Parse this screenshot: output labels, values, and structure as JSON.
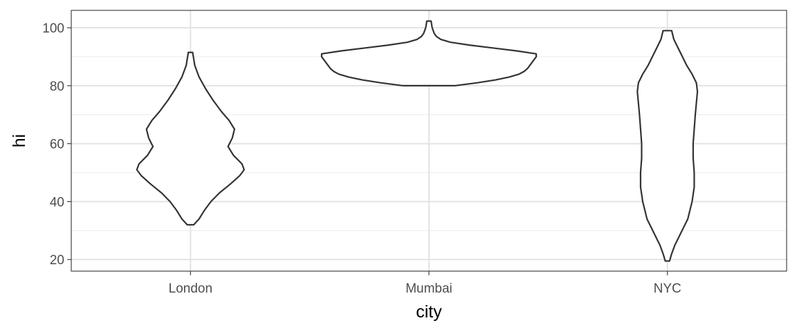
{
  "chart_data": {
    "type": "violin",
    "xlabel": "city",
    "ylabel": "hi",
    "categories": [
      "London",
      "Mumbai",
      "NYC"
    ],
    "ylim": [
      16,
      106
    ],
    "yticks": [
      20,
      40,
      60,
      80,
      100
    ],
    "grid": true,
    "theme": "bw",
    "series": [
      {
        "category": "London",
        "range": [
          32,
          91.5
        ],
        "density_profile": [
          [
            32,
            0.03
          ],
          [
            34,
            0.08
          ],
          [
            37,
            0.13
          ],
          [
            40,
            0.19
          ],
          [
            43,
            0.27
          ],
          [
            46,
            0.37
          ],
          [
            49,
            0.46
          ],
          [
            51,
            0.5
          ],
          [
            53,
            0.48
          ],
          [
            56,
            0.4
          ],
          [
            59,
            0.35
          ],
          [
            62,
            0.39
          ],
          [
            65,
            0.41
          ],
          [
            68,
            0.36
          ],
          [
            71,
            0.29
          ],
          [
            75,
            0.21
          ],
          [
            79,
            0.14
          ],
          [
            83,
            0.08
          ],
          [
            87,
            0.04
          ],
          [
            91.5,
            0.02
          ]
        ]
      },
      {
        "category": "Mumbai",
        "range": [
          80,
          102.3
        ],
        "density_profile": [
          [
            80,
            0.24
          ],
          [
            81,
            0.45
          ],
          [
            82,
            0.62
          ],
          [
            83,
            0.75
          ],
          [
            84,
            0.84
          ],
          [
            85,
            0.89
          ],
          [
            86,
            0.92
          ],
          [
            87,
            0.94
          ],
          [
            88,
            0.96
          ],
          [
            89,
            0.98
          ],
          [
            90,
            1.0
          ],
          [
            91,
            1.0
          ],
          [
            92,
            0.82
          ],
          [
            93,
            0.6
          ],
          [
            94,
            0.38
          ],
          [
            95,
            0.2
          ],
          [
            96,
            0.11
          ],
          [
            97,
            0.07
          ],
          [
            98,
            0.05
          ],
          [
            100,
            0.03
          ],
          [
            102.3,
            0.02
          ]
        ]
      },
      {
        "category": "NYC",
        "range": [
          19.5,
          99
        ],
        "density_profile": [
          [
            19.5,
            0.02
          ],
          [
            22,
            0.04
          ],
          [
            25,
            0.07
          ],
          [
            28,
            0.11
          ],
          [
            31,
            0.15
          ],
          [
            34,
            0.19
          ],
          [
            37,
            0.21
          ],
          [
            40,
            0.23
          ],
          [
            45,
            0.25
          ],
          [
            50,
            0.25
          ],
          [
            55,
            0.24
          ],
          [
            60,
            0.24
          ],
          [
            65,
            0.25
          ],
          [
            70,
            0.26
          ],
          [
            74,
            0.27
          ],
          [
            78,
            0.28
          ],
          [
            81,
            0.27
          ],
          [
            84,
            0.23
          ],
          [
            87,
            0.18
          ],
          [
            90,
            0.14
          ],
          [
            93,
            0.1
          ],
          [
            96,
            0.06
          ],
          [
            99,
            0.04
          ]
        ]
      }
    ]
  }
}
